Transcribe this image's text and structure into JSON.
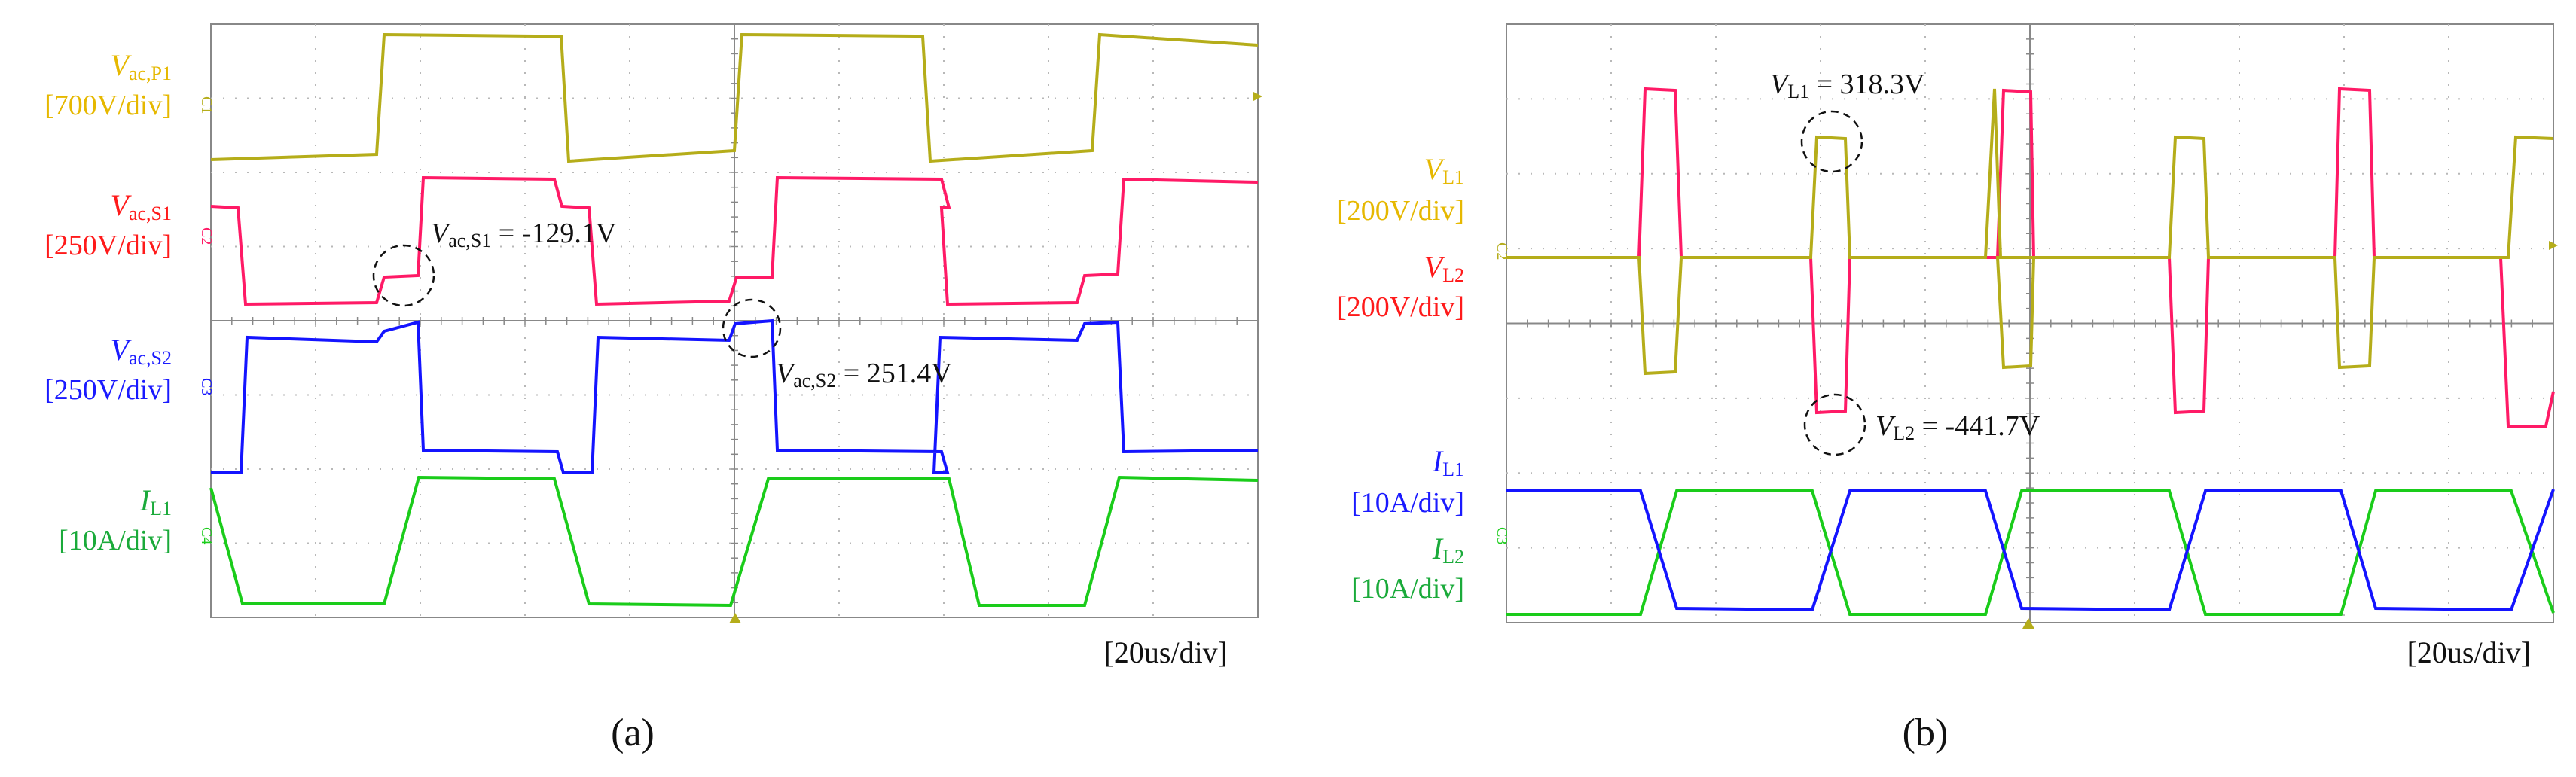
{
  "chart_data": [
    {
      "panel": "(a)",
      "type": "line",
      "subtype": "oscilloscope",
      "timebase": "[20us/div]",
      "grid": true,
      "series": [
        {
          "id": "C1",
          "name_main": "V",
          "name_sub": "ac,P1",
          "scale": "[700V/div]",
          "color": "#b5ad1a",
          "channel_tag": "C1"
        },
        {
          "id": "C2",
          "name_main": "V",
          "name_sub": "ac,S1",
          "scale": "[250V/div]",
          "color": "#ff1a66",
          "channel_tag": "C2"
        },
        {
          "id": "C3",
          "name_main": "V",
          "name_sub": "ac,S2",
          "scale": "[250V/div]",
          "color": "#1414ff",
          "channel_tag": "C3"
        },
        {
          "id": "C4",
          "name_main": "I",
          "name_sub": "L1",
          "scale": "[10A/div]",
          "color": "#1acc1a",
          "channel_tag": "C4"
        }
      ],
      "annotations": [
        {
          "main": "V",
          "sub": "ac,S1",
          "text": " = -129.1V"
        },
        {
          "main": "V",
          "sub": "ac,S2",
          "text": " = 251.4V"
        }
      ]
    },
    {
      "panel": "(b)",
      "type": "line",
      "subtype": "oscilloscope",
      "timebase": "[20us/div]",
      "grid": true,
      "series": [
        {
          "id": "VL1",
          "name_main": "V",
          "name_sub": "L1",
          "scale": "[200V/div]",
          "color": "#b5ad1a",
          "channel_tag": "C2"
        },
        {
          "id": "VL2",
          "name_main": "V",
          "name_sub": "L2",
          "scale": "[200V/div]",
          "color": "#ff1a66"
        },
        {
          "id": "IL1",
          "name_main": "I",
          "name_sub": "L1",
          "scale": "[10A/div]",
          "color": "#1414ff",
          "channel_tag": "C3"
        },
        {
          "id": "IL2",
          "name_main": "I",
          "name_sub": "L2",
          "scale": "[10A/div]",
          "color": "#1acc1a"
        }
      ],
      "annotations": [
        {
          "main": "V",
          "sub": "L1",
          "text": " = 318.3V"
        },
        {
          "main": "V",
          "sub": "L2",
          "text": " = -441.7V"
        }
      ]
    }
  ],
  "colors": {
    "label_a_vac_p1": "#e6b800",
    "label_vac_s1": "#ff1a1a",
    "label_vac_s2": "#1a1aff",
    "label_il1": "#1aaa3a",
    "label_b_vl1": "#e6b800",
    "label_b_vl2": "#ff1a1a",
    "label_b_il1": "#1a1aff",
    "label_b_il2": "#1aaa3a"
  }
}
